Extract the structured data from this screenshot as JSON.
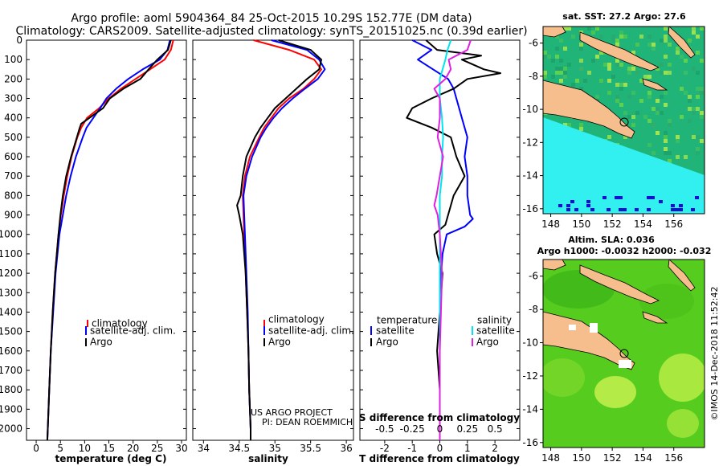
{
  "header": {
    "line1": "Argo profile: aoml 5904364_84 25-Oct-2015 10.29S 152.77E (DM data)",
    "line2": "Climatology: CARS2009. Satellite-adjusted climatology: synTS_20151025.nc (0.39d earlier)"
  },
  "colors": {
    "climatology": "#ff0000",
    "satellite": "#0000ff",
    "argo": "#000000",
    "sat_salinity": "#00e5ee",
    "argo_salinity": "#e020e0"
  },
  "depth_axis": {
    "ticks": [
      "0",
      "100",
      "200",
      "300",
      "400",
      "500",
      "600",
      "700",
      "800",
      "900",
      "1000",
      "1100",
      "1200",
      "1300",
      "1400",
      "1500",
      "1600",
      "1700",
      "1800",
      "1900",
      "2000"
    ],
    "range": [
      0,
      2060
    ]
  },
  "chart_data": [
    {
      "type": "line",
      "xlabel": "temperature (deg C)",
      "xticks": [
        "0",
        "5",
        "10",
        "15",
        "20",
        "25",
        "30"
      ],
      "xlim": [
        -2,
        31
      ],
      "ylim": [
        2060,
        0
      ],
      "legend": [
        "climatology",
        "satellite-adj. clim.",
        "Argo"
      ],
      "series": [
        {
          "name": "climatology",
          "depth": [
            0,
            50,
            100,
            150,
            200,
            250,
            300,
            350,
            400,
            450,
            500,
            600,
            700,
            800,
            900,
            1000,
            1200,
            1400,
            1600,
            1800,
            2000,
            2060
          ],
          "values": [
            28.3,
            27.8,
            26.5,
            23.5,
            20.5,
            17.5,
            15.0,
            13.0,
            10.5,
            9.3,
            8.5,
            7.3,
            6.4,
            5.7,
            5.1,
            4.6,
            3.9,
            3.4,
            3.0,
            2.7,
            2.4,
            2.3
          ]
        },
        {
          "name": "satellite-adj. clim.",
          "depth": [
            0,
            50,
            100,
            150,
            200,
            250,
            300,
            350,
            400,
            450,
            500,
            600,
            700,
            800,
            900,
            1000,
            1200,
            1400,
            1600,
            1800,
            2000,
            2060
          ],
          "values": [
            27.6,
            27.1,
            25.5,
            22.0,
            19.0,
            16.5,
            14.5,
            13.2,
            11.8,
            10.4,
            9.6,
            8.2,
            7.1,
            6.2,
            5.5,
            4.8,
            4.0,
            3.5,
            3.0,
            2.7,
            2.4,
            2.3
          ]
        },
        {
          "name": "Argo",
          "depth": [
            0,
            50,
            100,
            150,
            200,
            250,
            300,
            350,
            400,
            430,
            450,
            500,
            600,
            700,
            800,
            900,
            1000,
            1200,
            1400,
            1600,
            1800,
            2000,
            2060
          ],
          "values": [
            27.8,
            27.2,
            25.0,
            23.2,
            21.5,
            18.0,
            15.2,
            13.8,
            11.0,
            9.3,
            9.0,
            8.4,
            7.2,
            6.2,
            5.5,
            5.0,
            4.6,
            3.9,
            3.4,
            3.0,
            2.7,
            2.4,
            2.3
          ]
        }
      ]
    },
    {
      "type": "line",
      "xlabel": "salinity",
      "xticks": [
        "34",
        "34.5",
        "35",
        "35.5",
        "36"
      ],
      "xlim": [
        33.85,
        36.1
      ],
      "ylim": [
        2060,
        0
      ],
      "legend": [
        "climatology",
        "satellite-adj. clim.",
        "Argo"
      ],
      "series": [
        {
          "name": "climatology",
          "depth": [
            0,
            50,
            100,
            150,
            200,
            250,
            300,
            350,
            400,
            450,
            500,
            600,
            700,
            800,
            900,
            1000,
            1200,
            1400,
            1600,
            1800,
            2000,
            2060
          ],
          "values": [
            34.7,
            35.2,
            35.55,
            35.65,
            35.55,
            35.4,
            35.2,
            35.05,
            34.95,
            34.85,
            34.78,
            34.65,
            34.58,
            34.55,
            34.56,
            34.57,
            34.59,
            34.61,
            34.63,
            34.64,
            34.66,
            34.66
          ]
        },
        {
          "name": "satellite-adj. clim.",
          "depth": [
            0,
            50,
            100,
            150,
            200,
            250,
            300,
            350,
            400,
            450,
            500,
            600,
            700,
            800,
            900,
            1000,
            1200,
            1400,
            1600,
            1800,
            2000,
            2060
          ],
          "values": [
            34.95,
            35.45,
            35.62,
            35.7,
            35.6,
            35.42,
            35.25,
            35.1,
            34.98,
            34.88,
            34.8,
            34.68,
            34.6,
            34.56,
            34.57,
            34.58,
            34.6,
            34.62,
            34.63,
            34.64,
            34.66,
            34.66
          ]
        },
        {
          "name": "Argo",
          "depth": [
            0,
            50,
            100,
            150,
            200,
            250,
            300,
            350,
            400,
            450,
            500,
            600,
            700,
            800,
            850,
            900,
            1000,
            1200,
            1400,
            1600,
            1800,
            2000,
            2060
          ],
          "values": [
            35.05,
            35.5,
            35.65,
            35.62,
            35.45,
            35.3,
            35.15,
            35.0,
            34.9,
            34.8,
            34.72,
            34.6,
            34.55,
            34.52,
            34.47,
            34.5,
            34.55,
            34.59,
            34.61,
            34.63,
            34.64,
            34.66,
            34.66
          ]
        }
      ]
    },
    {
      "type": "line",
      "xlabel": "T difference from climatology",
      "top_xlabel": "S difference from climatology",
      "xticks": [
        "-2",
        "-1",
        "0",
        "1",
        "2"
      ],
      "top_xticks": [
        "-0.5",
        "-0.25",
        "0",
        "0.25",
        "0.5"
      ],
      "xlim": [
        -2.9,
        2.9
      ],
      "ylim": [
        2060,
        0
      ],
      "legend_temperature_header": "temperature",
      "legend_salinity_header": "salinity",
      "legend_temperature": [
        "satellite",
        "Argo"
      ],
      "legend_salinity": [
        "satellite",
        "Argo"
      ],
      "series": [
        {
          "name": "temperature satellite",
          "depth": [
            0,
            50,
            100,
            200,
            250,
            300,
            400,
            500,
            600,
            700,
            800,
            900,
            920,
            960,
            1000,
            1100,
            1200,
            1400,
            1600,
            1800,
            2000,
            2060
          ],
          "values": [
            -1.0,
            -0.3,
            -0.8,
            0.3,
            0.5,
            0.6,
            0.8,
            1.0,
            0.9,
            1.0,
            1.0,
            1.1,
            1.2,
            0.9,
            0.25,
            0.1,
            0.05,
            0.0,
            0.0,
            0.0,
            0.0,
            0.0
          ]
        },
        {
          "name": "temperature Argo",
          "depth": [
            0,
            50,
            80,
            100,
            150,
            170,
            200,
            250,
            300,
            350,
            400,
            450,
            500,
            600,
            700,
            800,
            900,
            950,
            1000,
            1100,
            1200,
            1400,
            1600,
            1800,
            2000,
            2060
          ],
          "values": [
            -0.5,
            -0.1,
            1.5,
            0.8,
            1.6,
            2.2,
            1.0,
            0.5,
            -0.3,
            -1.0,
            -1.2,
            -0.3,
            0.4,
            0.6,
            0.9,
            0.5,
            0.3,
            0.2,
            -0.2,
            -0.1,
            0.1,
            0.0,
            -0.1,
            0.0,
            0.0,
            0.0
          ]
        },
        {
          "name": "salinity satellite",
          "depth": [
            0,
            50,
            100,
            200,
            300,
            400,
            500,
            600,
            700,
            800,
            900,
            1000,
            1200,
            1400,
            1600,
            1800,
            2000,
            2060
          ],
          "values": [
            0.1,
            0.07,
            0.05,
            0.0,
            0.0,
            0.02,
            0.03,
            0.02,
            0.02,
            0.0,
            0.0,
            0.0,
            0.0,
            0.0,
            0.0,
            0.0,
            0.0,
            0.0
          ]
        },
        {
          "name": "salinity Argo",
          "depth": [
            0,
            50,
            100,
            150,
            200,
            250,
            300,
            400,
            500,
            600,
            700,
            800,
            850,
            900,
            1000,
            1200,
            1400,
            1600,
            1800,
            2000,
            2060
          ],
          "values": [
            0.28,
            0.25,
            0.08,
            0.1,
            0.05,
            -0.05,
            0.0,
            0.0,
            -0.02,
            0.03,
            0.0,
            -0.03,
            -0.05,
            -0.02,
            0.0,
            0.02,
            0.01,
            0.0,
            0.0,
            0.0,
            0.0
          ]
        }
      ]
    }
  ],
  "credits": {
    "line1": "US ARGO PROJECT",
    "line2": "PI: DEAN ROEMMICH"
  },
  "maps": {
    "sst": {
      "title": "sat. SST: 27.2 Argo: 27.6",
      "lat_ticks": [
        "-6",
        "-8",
        "-10",
        "-12",
        "-14",
        "-16"
      ],
      "lon_ticks": [
        "148",
        "150",
        "152",
        "154",
        "156"
      ]
    },
    "sla": {
      "title1": "Altim. SLA: 0.036",
      "title2": "Argo h1000: -0.0032 h2000: -0.032",
      "lat_ticks": [
        "-6",
        "-8",
        "-10",
        "-12",
        "-14",
        "-16"
      ],
      "lon_ticks": [
        "148",
        "150",
        "152",
        "154",
        "156"
      ]
    }
  },
  "watermark": "©IMOS 14-Dec-2018 11:52:42"
}
